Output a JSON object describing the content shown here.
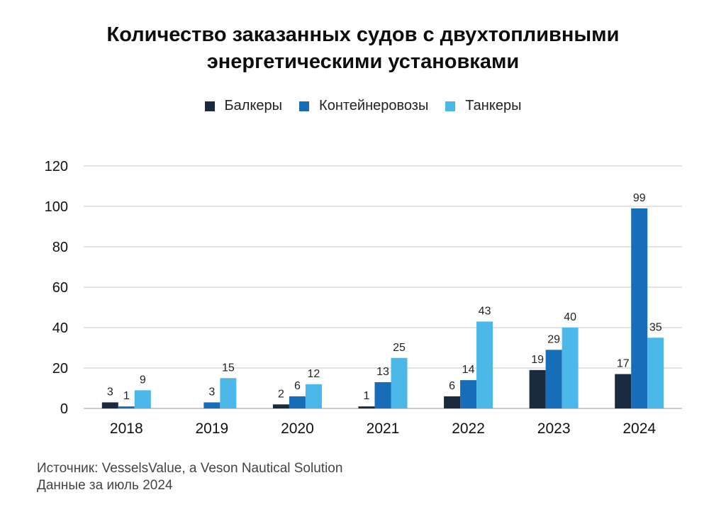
{
  "chart_data": {
    "type": "bar",
    "title_lines": [
      "Количество заказанных судов с двухтопливными",
      "энергетическими установками"
    ],
    "categories": [
      "2018",
      "2019",
      "2020",
      "2021",
      "2022",
      "2023",
      "2024"
    ],
    "series": [
      {
        "name": "Балкеры",
        "color": "#1a2a3f",
        "values": [
          3,
          null,
          2,
          1,
          6,
          19,
          17
        ]
      },
      {
        "name": "Контейнеровозы",
        "color": "#176db7",
        "values": [
          1,
          3,
          6,
          13,
          14,
          29,
          99
        ]
      },
      {
        "name": "Танкеры",
        "color": "#4cb8ea",
        "values": [
          9,
          15,
          12,
          25,
          43,
          40,
          35
        ]
      }
    ],
    "yticks": [
      "0",
      "20",
      "40",
      "60",
      "80",
      "100",
      "120"
    ],
    "ylim": [
      0,
      120
    ],
    "grid": true,
    "legend_position": "top-center"
  },
  "footer": {
    "source": "Источник: VesselsValue, a Veson Nautical Solution",
    "date": "Данные за июль 2024"
  }
}
